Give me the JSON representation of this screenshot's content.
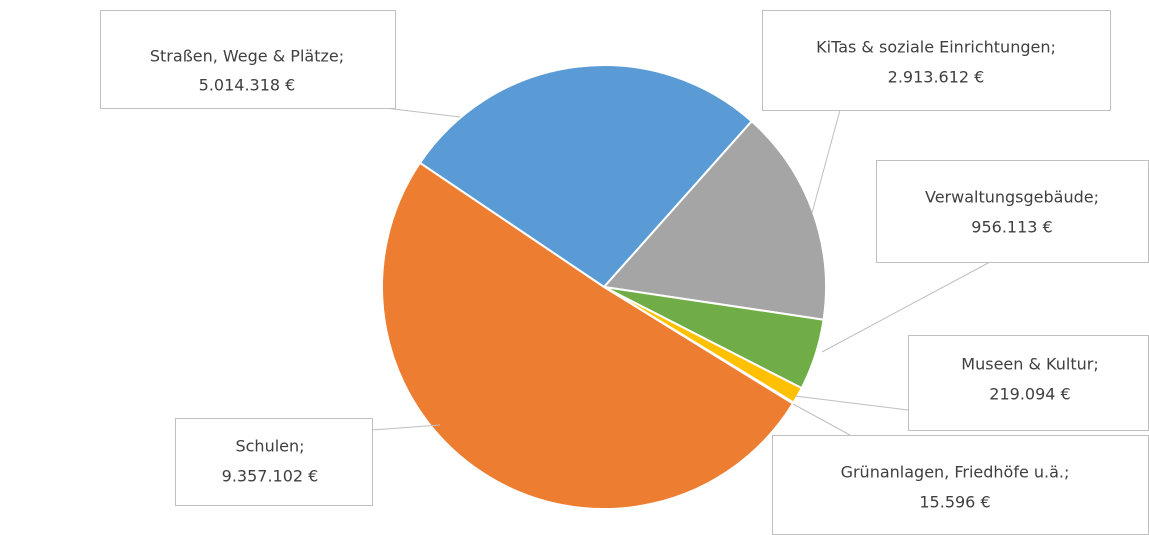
{
  "chart_data": {
    "type": "pie",
    "categories": [
      "Straßen, Wege & Plätze;",
      "KiTas & soziale Einrichtungen;",
      "Verwaltungsgebäude;",
      "Museen & Kultur;",
      "Grünanlagen, Friedhöfe u.ä.;",
      "Schulen;"
    ],
    "values": [
      5014318,
      2913612,
      956113,
      219094,
      15596,
      9357102
    ],
    "value_labels": [
      "5.014.318 €",
      "2.913.612 €",
      "956.113 €",
      "219.094 €",
      "15.596 €",
      "9.357.102 €"
    ],
    "colors": [
      "#5b9bd5",
      "#a5a5a5",
      "#70ad47",
      "#ffc000",
      "#4472c4",
      "#ed7d31"
    ]
  }
}
